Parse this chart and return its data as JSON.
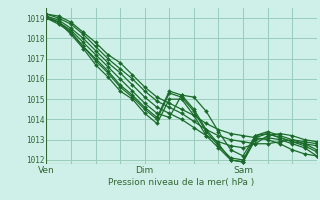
{
  "xlabel": "Pression niveau de la mer( hPa )",
  "bg_color": "#cff0e8",
  "grid_color": "#99ccbb",
  "line_color": "#1a6b2a",
  "tick_label_color": "#336633",
  "ylim": [
    1011.8,
    1019.5
  ],
  "xlim": [
    0,
    66
  ],
  "yticks": [
    1012,
    1013,
    1014,
    1015,
    1016,
    1017,
    1018,
    1019
  ],
  "xtick_positions": [
    0,
    24,
    48
  ],
  "xtick_labels": [
    "Ven",
    "Dim",
    "Sam"
  ],
  "series": [
    [
      1019.2,
      1019.1,
      1018.8,
      1018.3,
      1017.8,
      1017.2,
      1016.8,
      1016.2,
      1015.6,
      1015.1,
      1014.8,
      1014.5,
      1014.2,
      1013.8,
      1013.5,
      1013.3,
      1013.2,
      1013.1,
      1013.0,
      1012.8,
      1012.5,
      1012.3,
      1012.2
    ],
    [
      1019.2,
      1019.0,
      1018.7,
      1018.2,
      1017.6,
      1017.0,
      1016.5,
      1016.0,
      1015.4,
      1014.9,
      1014.6,
      1014.3,
      1013.9,
      1013.5,
      1013.2,
      1013.0,
      1012.9,
      1012.8,
      1012.8,
      1012.9,
      1013.0,
      1012.9,
      1012.8
    ],
    [
      1019.1,
      1018.9,
      1018.5,
      1018.0,
      1017.4,
      1016.8,
      1016.3,
      1015.7,
      1015.1,
      1014.6,
      1014.3,
      1014.0,
      1013.6,
      1013.2,
      1012.9,
      1012.7,
      1012.6,
      1012.8,
      1013.2,
      1013.3,
      1013.2,
      1013.0,
      1012.9
    ],
    [
      1019.0,
      1018.8,
      1018.4,
      1017.8,
      1017.2,
      1016.6,
      1016.0,
      1015.4,
      1014.8,
      1014.3,
      1014.1,
      1015.2,
      1015.1,
      1014.4,
      1013.4,
      1012.5,
      1012.2,
      1013.2,
      1013.3,
      1013.1,
      1012.9,
      1012.8,
      1012.7
    ],
    [
      1019.0,
      1018.7,
      1018.3,
      1017.6,
      1017.0,
      1016.4,
      1015.7,
      1015.2,
      1014.6,
      1014.1,
      1015.4,
      1015.2,
      1014.5,
      1013.5,
      1012.8,
      1012.0,
      1011.9,
      1013.2,
      1013.4,
      1013.2,
      1013.0,
      1012.8,
      1012.5
    ],
    [
      1019.1,
      1018.8,
      1018.3,
      1017.6,
      1016.9,
      1016.3,
      1015.6,
      1015.1,
      1014.5,
      1014.0,
      1015.3,
      1015.1,
      1014.4,
      1013.4,
      1012.7,
      1012.1,
      1012.0,
      1013.1,
      1013.3,
      1013.1,
      1012.9,
      1012.7,
      1012.4
    ],
    [
      1019.0,
      1018.8,
      1018.2,
      1017.5,
      1016.7,
      1016.1,
      1015.4,
      1015.0,
      1014.3,
      1013.8,
      1015.0,
      1015.0,
      1014.2,
      1013.2,
      1012.6,
      1012.0,
      1011.9,
      1013.0,
      1013.1,
      1013.0,
      1012.8,
      1012.6,
      1012.2
    ]
  ],
  "x_hours": [
    0,
    3,
    6,
    9,
    12,
    15,
    18,
    21,
    24,
    27,
    30,
    33,
    36,
    39,
    42,
    45,
    48,
    51,
    54,
    57,
    60,
    63,
    66
  ]
}
